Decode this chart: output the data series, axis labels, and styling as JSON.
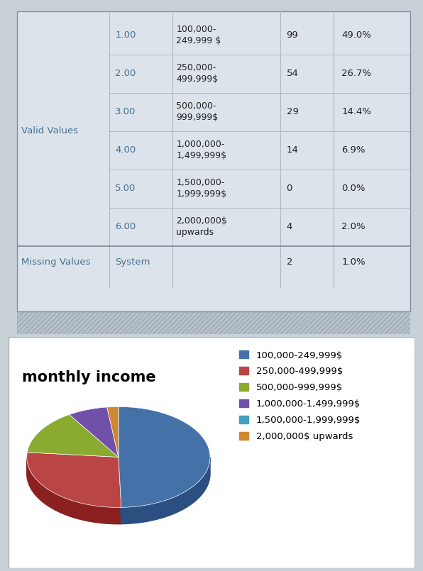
{
  "table": {
    "valid_label": "Valid Values",
    "missing_label": "Missing Values",
    "rows": [
      {
        "code": "1.00",
        "label": "100,000-\n249,999 $",
        "n": "99",
        "pct": "49.0%"
      },
      {
        "code": "2.00",
        "label": "250,000-\n499,999$",
        "n": "54",
        "pct": "26.7%"
      },
      {
        "code": "3.00",
        "label": "500,000-\n999,999$",
        "n": "29",
        "pct": "14.4%"
      },
      {
        "code": "4.00",
        "label": "1,000,000-\n1,499,999$",
        "n": "14",
        "pct": "6.9%"
      },
      {
        "code": "5.00",
        "label": "1,500,000-\n1,999,999$",
        "n": "0",
        "pct": "0.0%"
      },
      {
        "code": "6.00",
        "label": "2,000,000$\nupwards",
        "n": "4",
        "pct": "2.0%"
      }
    ],
    "missing_row": {
      "code": "System",
      "label": "",
      "n": "2",
      "pct": "1.0%"
    },
    "bg_color": "#dce3ea",
    "text_color": "#4a7090",
    "body_text_color": "#222222",
    "line_color": "#b0b8c4"
  },
  "pie": {
    "title": "monthly income",
    "values": [
      99,
      54,
      29,
      14,
      0,
      4
    ],
    "labels": [
      "100,000-249,999$",
      "250,000-499,999$",
      "500,000-999,999$",
      "1,000,000-1,499,999$",
      "1,500,000-1,999,999$",
      "2,000,000$ upwards"
    ],
    "colors_top": [
      "#4472a8",
      "#b94545",
      "#8aaa30",
      "#7050a8",
      "#40a0c0",
      "#d08830"
    ],
    "colors_side": [
      "#2a4f80",
      "#8a2020",
      "#5a7018",
      "#4a2880",
      "#207888",
      "#a05810"
    ],
    "bg_color": "#ffffff",
    "title_fontsize": 15,
    "legend_fontsize": 9.5
  },
  "hatch_color": "#b8c2cc",
  "outer_bg": "#c8d0d8"
}
